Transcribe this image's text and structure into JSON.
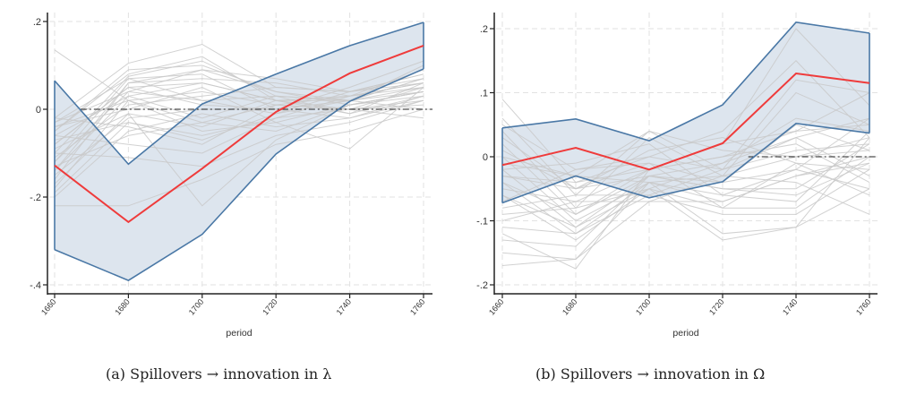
{
  "captions": {
    "a": "(a) Spillovers → innovation in λ",
    "b": "(b) Spillovers → innovation in Ω"
  },
  "chart_data": [
    {
      "type": "line",
      "panel": "a",
      "title": "",
      "xlabel": "period",
      "ylabel": "",
      "x": [
        1660,
        1680,
        1700,
        1720,
        1740,
        1760
      ],
      "x_tick_labels": [
        "1660",
        "1680",
        "1700",
        "1720",
        "1740",
        "1760"
      ],
      "ylim": [
        -0.41,
        0.205
      ],
      "y_ticks": [
        0.2,
        0,
        -0.2,
        -0.4
      ],
      "y_tick_labels": [
        ".2",
        "0",
        "-.2",
        "-.4"
      ],
      "grid": true,
      "reference_line": {
        "y": 0,
        "x_from": 1667,
        "style": "dash-dot"
      },
      "colors": {
        "estimate": "#ef3b3b",
        "band_edge": "#4a78a6",
        "band_fill": "#dde5ee",
        "placebo": "#c9c9c9"
      },
      "series": [
        {
          "name": "estimate",
          "values": [
            -0.128,
            -0.257,
            -0.135,
            -0.006,
            0.082,
            0.145
          ]
        },
        {
          "name": "ci_upper",
          "values": [
            0.065,
            -0.125,
            0.012,
            0.08,
            0.145,
            0.198
          ]
        },
        {
          "name": "ci_lower",
          "values": [
            -0.32,
            -0.39,
            -0.285,
            -0.102,
            0.018,
            0.092
          ]
        }
      ],
      "placebo_series": [
        [
          0.135,
          0.02,
          -0.03,
          0.01,
          0.03,
          0.06
        ],
        [
          -0.02,
          0.105,
          0.148,
          0.05,
          0.04,
          0.08
        ],
        [
          -0.05,
          0.08,
          0.12,
          0.02,
          0.0,
          0.05
        ],
        [
          -0.1,
          0.075,
          0.11,
          0.03,
          0.02,
          0.07
        ],
        [
          -0.14,
          0.06,
          0.09,
          0.04,
          0.01,
          0.04
        ],
        [
          -0.03,
          0.07,
          0.08,
          0.0,
          -0.02,
          0.03
        ],
        [
          -0.08,
          0.05,
          0.06,
          0.02,
          0.03,
          0.09
        ],
        [
          -0.12,
          0.04,
          0.02,
          -0.01,
          0.04,
          0.06
        ],
        [
          -0.06,
          0.03,
          -0.02,
          0.03,
          0.02,
          0.05
        ],
        [
          -0.18,
          0.02,
          0.04,
          0.01,
          0.0,
          0.02
        ],
        [
          -0.04,
          0.0,
          0.05,
          -0.03,
          0.01,
          0.04
        ],
        [
          -0.09,
          -0.01,
          -0.04,
          0.02,
          -0.01,
          0.03
        ],
        [
          -0.15,
          -0.02,
          0.0,
          0.0,
          0.02,
          0.07
        ],
        [
          -0.07,
          -0.03,
          -0.06,
          -0.02,
          0.03,
          0.05
        ],
        [
          -0.11,
          0.01,
          0.03,
          0.05,
          0.04,
          0.08
        ],
        [
          -0.2,
          -0.05,
          -0.01,
          -0.04,
          -0.02,
          0.02
        ],
        [
          -0.02,
          -0.04,
          -0.08,
          0.01,
          0.0,
          0.01
        ],
        [
          -0.13,
          -0.06,
          -0.03,
          -0.05,
          0.01,
          0.04
        ],
        [
          -0.16,
          0.06,
          0.07,
          0.06,
          0.03,
          0.06
        ],
        [
          -0.05,
          0.09,
          0.1,
          0.04,
          0.02,
          0.1
        ],
        [
          -0.22,
          -0.22,
          -0.16,
          -0.08,
          -0.05,
          0.0
        ],
        [
          -0.1,
          -0.11,
          -0.13,
          -0.06,
          -0.03,
          0.02
        ],
        [
          -0.17,
          -0.01,
          -0.22,
          -0.07,
          0.01,
          0.03
        ],
        [
          -0.04,
          0.02,
          -0.05,
          -0.03,
          -0.09,
          0.05
        ],
        [
          -0.08,
          0.05,
          0.01,
          0.0,
          0.05,
          0.11
        ],
        [
          -0.14,
          0.03,
          0.06,
          0.02,
          0.02,
          0.0
        ],
        [
          -0.06,
          -0.08,
          -0.1,
          -0.02,
          0.0,
          -0.02
        ],
        [
          -0.12,
          0.07,
          0.02,
          0.03,
          -0.01,
          0.06
        ],
        [
          -0.19,
          -0.03,
          -0.07,
          -0.01,
          0.02,
          0.04
        ],
        [
          -0.03,
          0.04,
          0.09,
          0.07,
          0.04,
          0.07
        ]
      ]
    },
    {
      "type": "line",
      "panel": "b",
      "title": "",
      "xlabel": "period",
      "ylabel": "",
      "x": [
        1660,
        1680,
        1700,
        1720,
        1740,
        1760
      ],
      "x_tick_labels": [
        "1660",
        "1680",
        "1700",
        "1720",
        "1740",
        "1760"
      ],
      "ylim": [
        -0.213,
        0.22
      ],
      "y_ticks": [
        0.2,
        0.1,
        0,
        -0.1,
        -0.2
      ],
      "y_tick_labels": [
        ".2",
        ".1",
        "0",
        "-.1",
        "-.2"
      ],
      "grid": true,
      "reference_line": {
        "y": 0,
        "x_from": 1727,
        "style": "dash-dot"
      },
      "colors": {
        "estimate": "#ef3b3b",
        "band_edge": "#4a78a6",
        "band_fill": "#dde5ee",
        "placebo": "#c9c9c9"
      },
      "series": [
        {
          "name": "estimate",
          "values": [
            -0.013,
            0.014,
            -0.02,
            0.021,
            0.13,
            0.115
          ]
        },
        {
          "name": "ci_upper",
          "values": [
            0.045,
            0.059,
            0.025,
            0.081,
            0.21,
            0.193
          ]
        },
        {
          "name": "ci_lower",
          "values": [
            -0.072,
            -0.03,
            -0.064,
            -0.039,
            0.052,
            0.037
          ]
        }
      ],
      "placebo_series": [
        [
          0.09,
          -0.04,
          -0.02,
          0.02,
          0.2,
          0.08
        ],
        [
          0.06,
          -0.06,
          0.04,
          -0.02,
          0.12,
          0.1
        ],
        [
          0.04,
          -0.08,
          0.03,
          -0.03,
          0.1,
          0.05
        ],
        [
          0.02,
          -0.09,
          -0.03,
          -0.05,
          -0.05,
          0.02
        ],
        [
          0.0,
          -0.1,
          -0.04,
          -0.06,
          -0.07,
          0.04
        ],
        [
          -0.02,
          -0.11,
          -0.05,
          -0.08,
          -0.08,
          0.0
        ],
        [
          -0.04,
          -0.12,
          -0.06,
          -0.09,
          -0.09,
          -0.02
        ],
        [
          -0.06,
          -0.13,
          -0.05,
          -0.13,
          -0.11,
          -0.05
        ],
        [
          -0.11,
          -0.12,
          -0.04,
          -0.12,
          -0.11,
          0.03
        ],
        [
          -0.13,
          -0.14,
          -0.03,
          -0.04,
          -0.02,
          0.06
        ],
        [
          -0.15,
          -0.16,
          -0.07,
          -0.03,
          0.0,
          0.01
        ],
        [
          -0.17,
          -0.16,
          -0.04,
          -0.07,
          -0.03,
          -0.01
        ],
        [
          -0.12,
          -0.175,
          -0.02,
          0.0,
          0.04,
          0.05
        ],
        [
          0.01,
          -0.05,
          -0.03,
          -0.01,
          0.03,
          -0.03
        ],
        [
          -0.03,
          -0.04,
          0.0,
          -0.02,
          0.01,
          0.02
        ],
        [
          -0.05,
          -0.07,
          -0.02,
          0.0,
          0.02,
          -0.04
        ],
        [
          -0.01,
          -0.03,
          0.04,
          0.01,
          0.0,
          0.03
        ],
        [
          -0.07,
          -0.02,
          -0.01,
          -0.04,
          0.05,
          0.01
        ],
        [
          0.03,
          -0.05,
          0.01,
          0.03,
          -0.01,
          -0.02
        ],
        [
          -0.08,
          -0.06,
          -0.06,
          -0.02,
          0.03,
          0.06
        ],
        [
          -0.02,
          -0.01,
          0.02,
          -0.06,
          -0.02,
          -0.05
        ],
        [
          -0.09,
          -0.08,
          -0.05,
          -0.01,
          0.06,
          0.04
        ],
        [
          0.0,
          -0.03,
          -0.04,
          -0.03,
          -0.04,
          -0.09
        ],
        [
          -0.04,
          -0.09,
          -0.02,
          0.02,
          0.04,
          0.1
        ],
        [
          -0.06,
          -0.11,
          -0.03,
          -0.05,
          -0.06,
          -0.01
        ],
        [
          0.05,
          -0.02,
          0.0,
          0.04,
          0.15,
          0.03
        ],
        [
          -0.1,
          -0.07,
          -0.07,
          -0.07,
          -0.03,
          0.0
        ],
        [
          -0.03,
          -0.05,
          -0.01,
          -0.08,
          -0.01,
          -0.06
        ]
      ]
    }
  ]
}
